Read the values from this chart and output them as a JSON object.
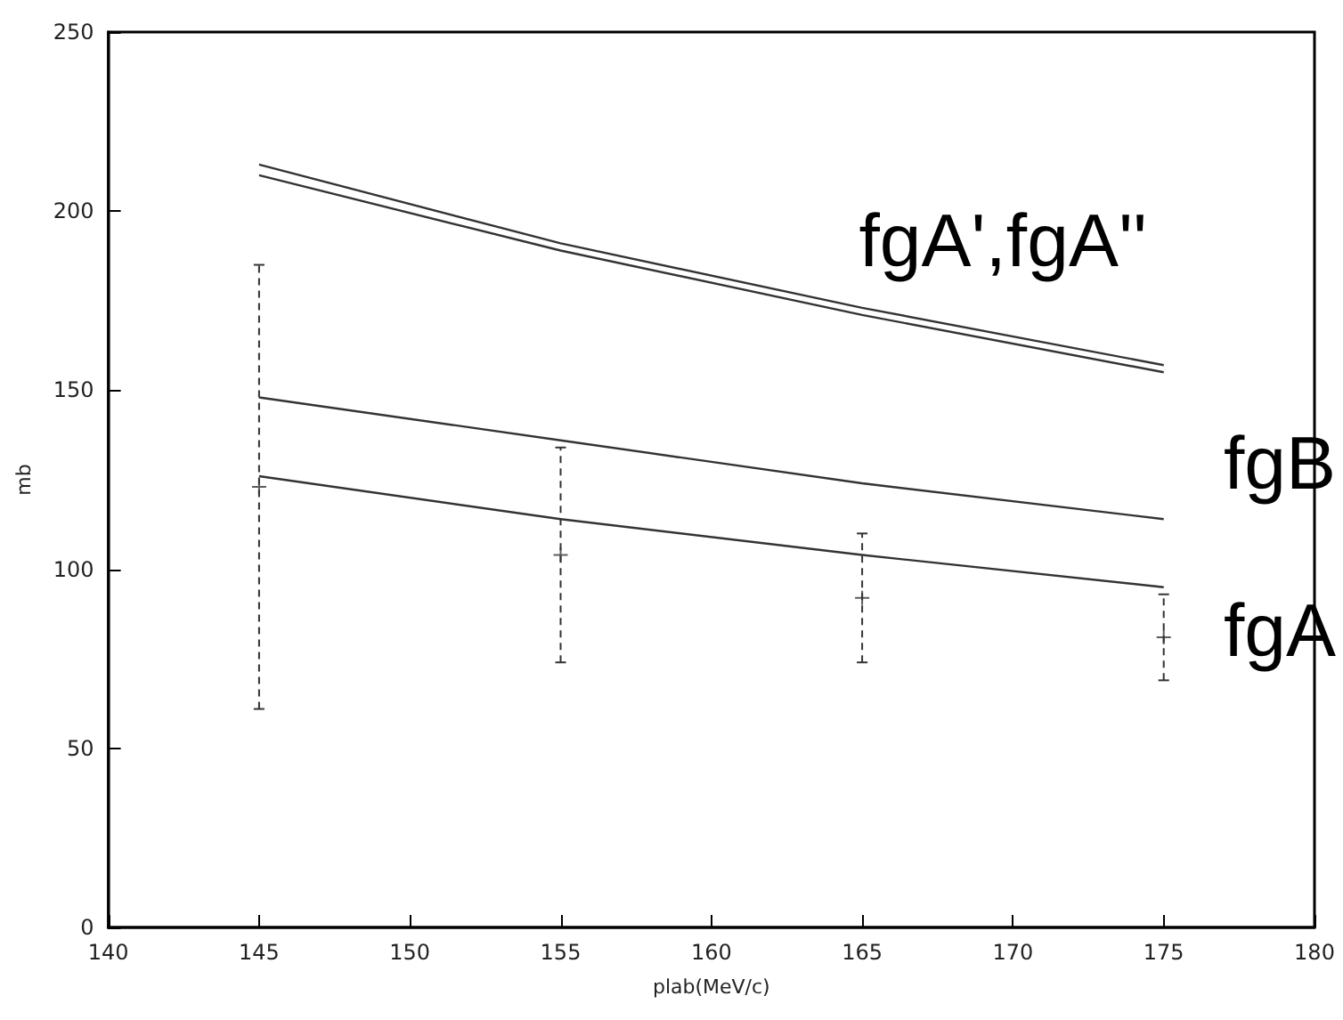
{
  "chart_data": {
    "type": "line",
    "xlabel": "plab(MeV/c)",
    "ylabel": "mb",
    "x": [
      145,
      155,
      165,
      175
    ],
    "series": [
      {
        "color": "#333333",
        "values": [
          213,
          191,
          173,
          157
        ]
      },
      {
        "color": "#333333",
        "values": [
          210,
          189,
          171,
          155
        ]
      },
      {
        "color": "#333333",
        "values": [
          148,
          136,
          124,
          114
        ]
      },
      {
        "color": "#333333",
        "values": [
          126,
          114,
          104,
          95
        ]
      },
      {
        "type": "scatter",
        "color": "#333333",
        "marker": "cross",
        "values": [
          123,
          104,
          92,
          81
        ],
        "errors": [
          [
            61,
            185
          ],
          [
            74,
            134
          ],
          [
            74,
            110
          ],
          [
            69,
            93
          ]
        ]
      }
    ],
    "xlim": [
      140,
      180
    ],
    "xticks": [
      140,
      145,
      150,
      155,
      160,
      165,
      170,
      175,
      180
    ],
    "ylim": [
      0,
      250
    ],
    "yticks": [
      0,
      50,
      100,
      150,
      200,
      250
    ],
    "grid": false,
    "marker": "none",
    "line_style": "solid",
    "annotations": [
      "fgA',fgA''",
      "fgB",
      "fgA"
    ]
  }
}
